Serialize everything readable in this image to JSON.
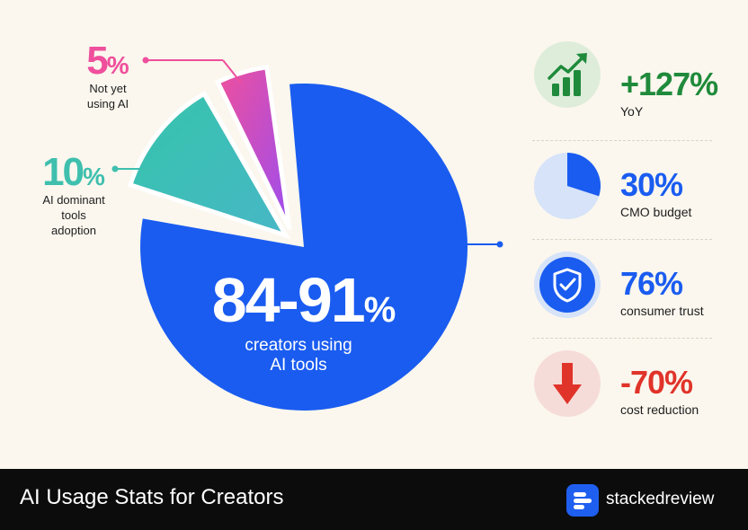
{
  "chart_data": {
    "type": "pie",
    "slices": [
      {
        "label_value": "84-91%",
        "value_main": "84-91",
        "value_unit": "%",
        "caption": [
          "creators using",
          "AI tools"
        ],
        "share": 84,
        "color": "#1a5cf0"
      },
      {
        "label_value": "10%",
        "value_main": "10",
        "value_unit": "%",
        "caption": [
          "AI dominant",
          "tools",
          "adoption"
        ],
        "share": 10,
        "color": "#3fbfae"
      },
      {
        "label_value": "5%",
        "value_main": "5",
        "value_unit": "%",
        "caption": [
          "Not yet",
          "using AI"
        ],
        "share": 5,
        "color": "#ef4f9c"
      }
    ]
  },
  "stats": [
    {
      "value": "+127%",
      "caption": "YoY",
      "icon": "growth-chart-icon",
      "color": "#1f8a3b",
      "bg": "#deedda"
    },
    {
      "value": "30%",
      "caption": "CMO budget",
      "icon": "pie-segment-icon",
      "color": "#1a5cf0",
      "bg": "#d6e3f9"
    },
    {
      "value": "76%",
      "caption": "consumer trust",
      "icon": "shield-check-icon",
      "color": "#1a5cf0",
      "bg": "#d6e3f9"
    },
    {
      "value": "-70%",
      "caption": "cost reduction",
      "icon": "down-arrow-icon",
      "color": "#e0332a",
      "bg": "#f6dcd8"
    }
  ],
  "footer": {
    "title": "AI Usage Stats for Creators",
    "brand": "stackedreview"
  }
}
